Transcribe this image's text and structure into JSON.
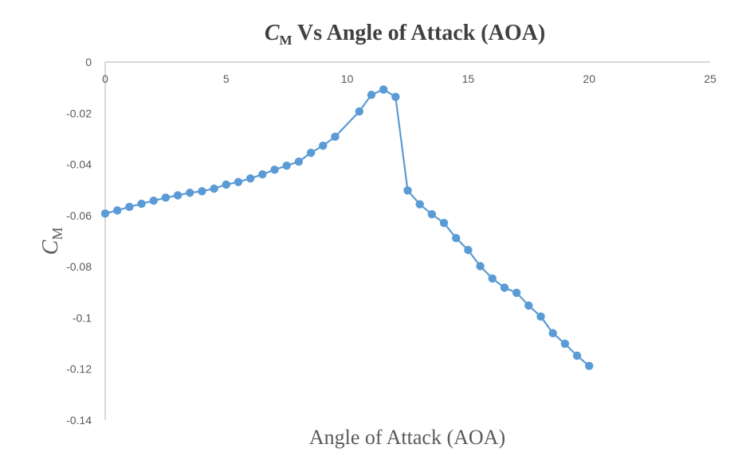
{
  "chart_data": {
    "type": "line",
    "title": {
      "main": "C",
      "sub": "M",
      "rest": " Vs Angle of Attack (AOA)"
    },
    "xlabel": "Angle of Attack (AOA)",
    "ylabel": {
      "main": "C",
      "sub": "M"
    },
    "xlim": [
      0,
      25
    ],
    "ylim": [
      -0.14,
      0
    ],
    "x_ticks": [
      0,
      5,
      10,
      15,
      20,
      25
    ],
    "y_ticks": [
      0,
      -0.02,
      -0.04,
      -0.06,
      -0.08,
      -0.1,
      -0.12,
      -0.14
    ],
    "x_tick_labels": [
      "0",
      "5",
      "10",
      "15",
      "20",
      "25"
    ],
    "y_tick_labels": [
      "0",
      "-0.02",
      "-0.04",
      "-0.06",
      "-0.08",
      "-0.1",
      "-0.12",
      "-0.14"
    ],
    "grid": false,
    "legend": "none",
    "series_color": "#5b9bd5",
    "series": [
      {
        "x": [
          0,
          0.5,
          1,
          1.5,
          2,
          2.5,
          3,
          3.5,
          4,
          4.5,
          5,
          5.5,
          6,
          6.5,
          7,
          7.5,
          8,
          8.5,
          9,
          9.5,
          10.5,
          11,
          11.5,
          12,
          12.5,
          13,
          13.5,
          14,
          14.5,
          15,
          15.5,
          16,
          16.5,
          17,
          17.5,
          18,
          18.5,
          19,
          19.5,
          20
        ],
        "values": [
          -0.0592,
          -0.058,
          -0.0566,
          -0.0554,
          -0.0542,
          -0.053,
          -0.0521,
          -0.0511,
          -0.0505,
          -0.0495,
          -0.0479,
          -0.0469,
          -0.0455,
          -0.0439,
          -0.0421,
          -0.0405,
          -0.0389,
          -0.0355,
          -0.0327,
          -0.0292,
          -0.0193,
          -0.0128,
          -0.0107,
          -0.0136,
          -0.0502,
          -0.0556,
          -0.0595,
          -0.0629,
          -0.0688,
          -0.0735,
          -0.0798,
          -0.0846,
          -0.0882,
          -0.0902,
          -0.0952,
          -0.0995,
          -0.106,
          -0.1101,
          -0.1148,
          -0.1188
        ]
      }
    ]
  }
}
